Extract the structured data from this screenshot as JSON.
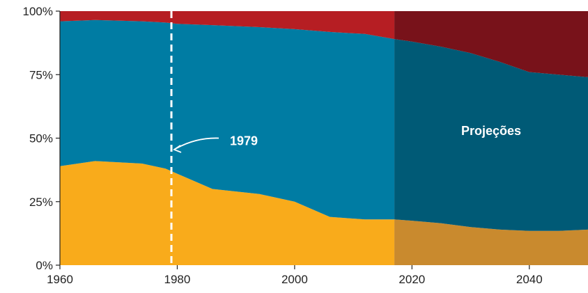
{
  "chart_data": {
    "type": "area",
    "stacked": true,
    "percent": true,
    "title": "",
    "xlabel": "",
    "ylabel": "",
    "xlim": [
      1960,
      2050
    ],
    "ylim": [
      0,
      100
    ],
    "x_ticks": [
      1960,
      1980,
      2000,
      2020,
      2040
    ],
    "y_ticks": [
      0,
      25,
      50,
      75,
      100
    ],
    "y_tick_labels": [
      "0%",
      "25%",
      "50%",
      "75%",
      "100%"
    ],
    "x": [
      1960,
      1966,
      1974,
      1978,
      1980,
      1986,
      1994,
      2000,
      2006,
      2012,
      2017,
      2020,
      2025,
      2030,
      2035,
      2040,
      2045,
      2050
    ],
    "series": [
      {
        "color": "#f9ab1b",
        "projection_color": "#c98a2e",
        "values": [
          39,
          41,
          40,
          38,
          36,
          30,
          28,
          25,
          19,
          18,
          18,
          17.5,
          16.5,
          15,
          14,
          13.5,
          13.5,
          14
        ]
      },
      {
        "color": "#007ca3",
        "projection_color": "#005a76",
        "values": [
          57,
          55.5,
          56,
          57.5,
          59,
          64.5,
          65.7,
          67.9,
          72.8,
          73,
          71,
          70.5,
          69.5,
          68.5,
          66,
          62.5,
          61.5,
          60
        ]
      },
      {
        "color": "#b61e23",
        "projection_color": "#78121a",
        "values": [
          4,
          3.5,
          4,
          4.5,
          5,
          5.5,
          6.3,
          7.1,
          8.2,
          9,
          11,
          12,
          14,
          16.5,
          20,
          24,
          25,
          26
        ]
      }
    ],
    "projection_start": 2017,
    "annotations": [
      {
        "label": "1979",
        "x": 1979,
        "style": "dashed-line"
      },
      {
        "label": "Projeções",
        "region": "projection"
      }
    ]
  }
}
